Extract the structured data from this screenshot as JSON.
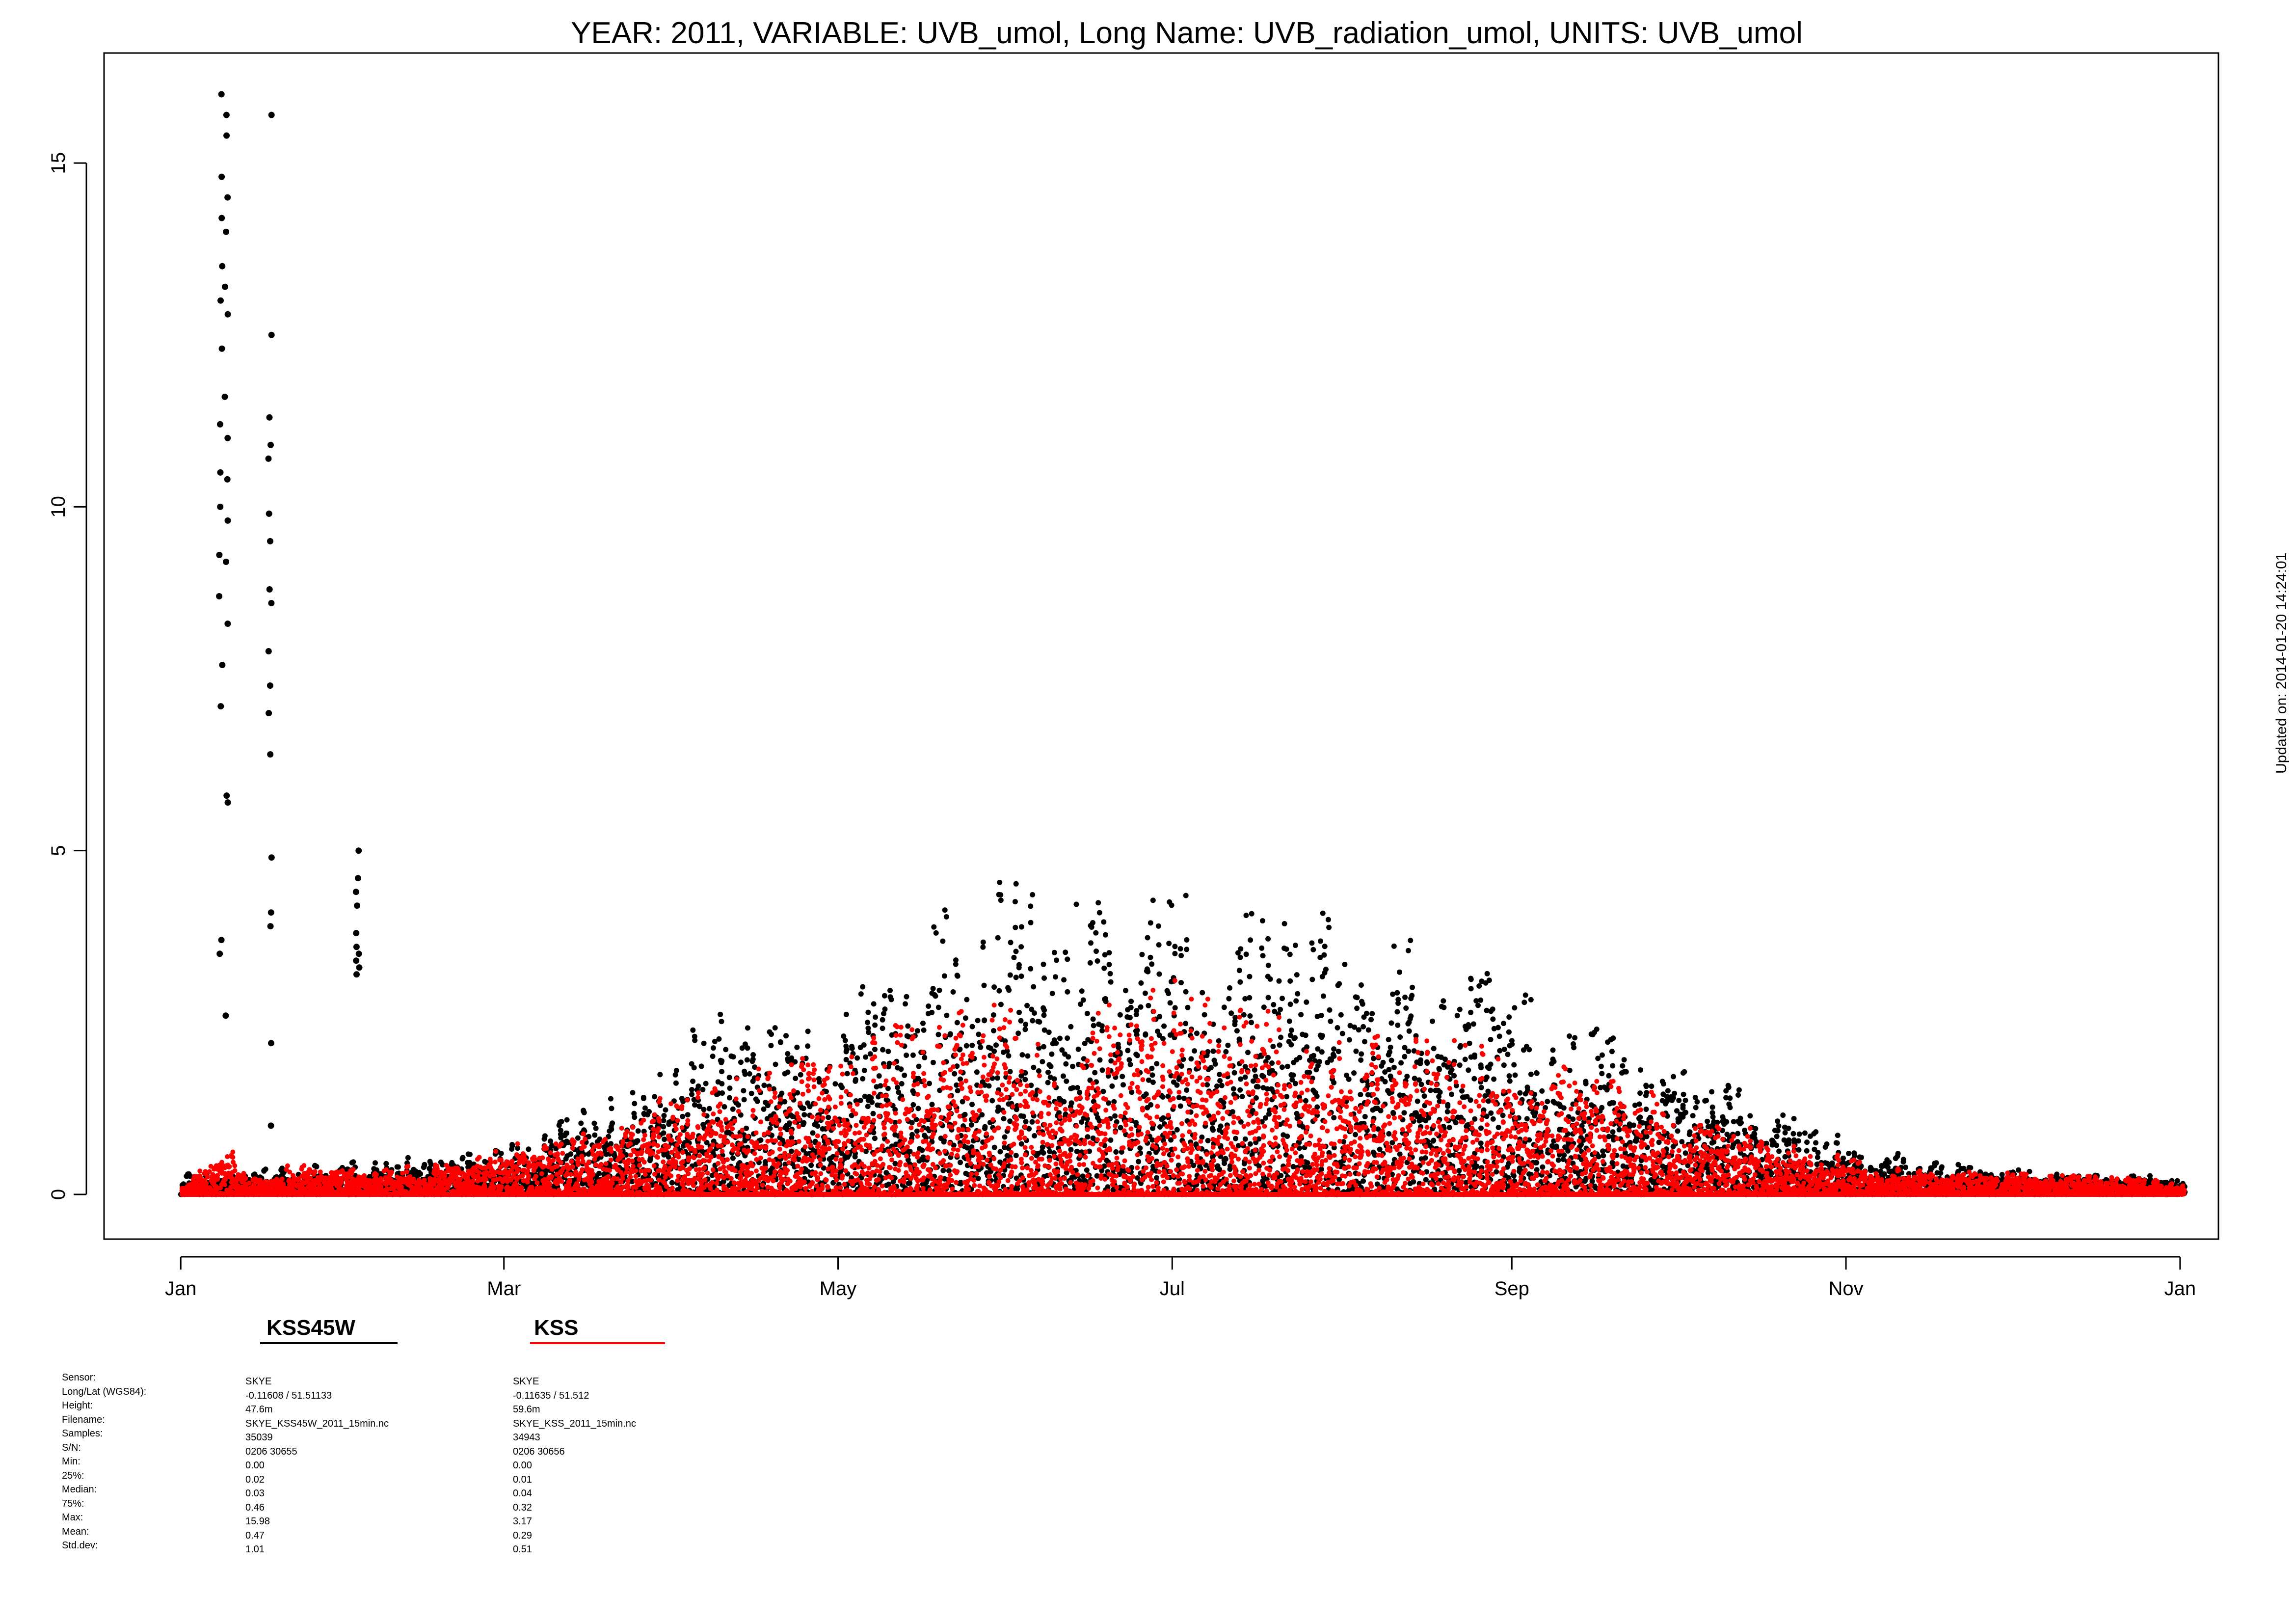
{
  "chart_data": {
    "type": "scatter",
    "title": "YEAR: 2011, VARIABLE: UVB_umol, Long Name: UVB_radiation_umol, UNITS: UVB_umol",
    "xlabel": "",
    "ylabel": "",
    "x_ticks": [
      "Jan",
      "Mar",
      "May",
      "Jul",
      "Sep",
      "Nov",
      "Jan"
    ],
    "x_tick_days": [
      0,
      59,
      120,
      181,
      243,
      304,
      365
    ],
    "xlim_days": [
      -14,
      372
    ],
    "y_ticks": [
      "0",
      "5",
      "10",
      "15"
    ],
    "y_tick_values": [
      0,
      5,
      10,
      15
    ],
    "ylim": [
      -0.65,
      16.6
    ],
    "grid": false,
    "legend_position": "bottom-left",
    "series": [
      {
        "name": "KSS45W",
        "color": "#000000",
        "envelope": [
          [
            0,
            0.3
          ],
          [
            10,
            0.35
          ],
          [
            20,
            0.4
          ],
          [
            35,
            0.5
          ],
          [
            50,
            0.7
          ],
          [
            59,
            0.8
          ],
          [
            66,
            1.0
          ],
          [
            75,
            1.3
          ],
          [
            85,
            1.7
          ],
          [
            95,
            2.6
          ],
          [
            110,
            2.7
          ],
          [
            120,
            3.0
          ],
          [
            130,
            3.2
          ],
          [
            140,
            4.3
          ],
          [
            150,
            4.7
          ],
          [
            160,
            4.4
          ],
          [
            170,
            4.2
          ],
          [
            181,
            4.7
          ],
          [
            190,
            4.1
          ],
          [
            200,
            4.3
          ],
          [
            210,
            4.1
          ],
          [
            220,
            3.9
          ],
          [
            230,
            3.4
          ],
          [
            243,
            3.1
          ],
          [
            255,
            2.5
          ],
          [
            265,
            2.2
          ],
          [
            275,
            1.9
          ],
          [
            285,
            1.5
          ],
          [
            295,
            1.1
          ],
          [
            304,
            0.8
          ],
          [
            315,
            0.55
          ],
          [
            330,
            0.4
          ],
          [
            345,
            0.32
          ],
          [
            365,
            0.25
          ]
        ],
        "outliers": [
          {
            "day": 7,
            "values": [
              16.0,
              14.8,
              14.2,
              13.5,
              13.0,
              12.3,
              11.2,
              10.5,
              10.0,
              9.3,
              8.7,
              7.7,
              7.1,
              3.7,
              3.5
            ]
          },
          {
            "day": 8,
            "values": [
              15.7,
              15.4,
              14.5,
              14.0,
              13.2,
              12.8,
              11.6,
              11.0,
              10.4,
              9.8,
              9.2,
              8.3,
              5.8,
              5.7,
              2.6
            ]
          },
          {
            "day": 16,
            "values": [
              15.7,
              12.5,
              11.3,
              10.9,
              10.7,
              9.9,
              9.5,
              8.8,
              8.6,
              7.9,
              7.4,
              7.0,
              6.4,
              4.9,
              4.1,
              3.9,
              2.2,
              1.0
            ]
          },
          {
            "day": 32,
            "values": [
              5.0,
              4.6,
              4.4,
              4.2,
              3.8,
              3.6,
              3.5,
              3.4,
              3.3,
              3.2
            ]
          }
        ]
      },
      {
        "name": "KSS",
        "color": "#ff0000",
        "envelope": [
          [
            0,
            0.1
          ],
          [
            8,
            0.8
          ],
          [
            12,
            0.3
          ],
          [
            20,
            0.5
          ],
          [
            35,
            0.35
          ],
          [
            50,
            0.5
          ],
          [
            59,
            0.7
          ],
          [
            70,
            0.9
          ],
          [
            85,
            1.3
          ],
          [
            95,
            1.8
          ],
          [
            110,
            1.9
          ],
          [
            120,
            2.3
          ],
          [
            130,
            2.6
          ],
          [
            145,
            2.9
          ],
          [
            160,
            2.5
          ],
          [
            181,
            3.2
          ],
          [
            195,
            2.7
          ],
          [
            210,
            2.6
          ],
          [
            225,
            2.4
          ],
          [
            243,
            2.1
          ],
          [
            255,
            1.8
          ],
          [
            265,
            1.6
          ],
          [
            280,
            1.1
          ],
          [
            295,
            0.8
          ],
          [
            304,
            0.55
          ],
          [
            315,
            0.35
          ],
          [
            340,
            0.3
          ],
          [
            365,
            0.2
          ]
        ]
      }
    ]
  },
  "legend": {
    "items": [
      {
        "name": "KSS45W",
        "color": "#000000"
      },
      {
        "name": "KSS",
        "color": "#ff0000"
      }
    ]
  },
  "updated_note": "Updated on: 2014-01-20 14:24:01",
  "metadata": {
    "labels": [
      "Sensor:",
      "Long/Lat (WGS84):",
      "Height:",
      "Filename:",
      "Samples:",
      "S/N:",
      "Min:",
      "25%:",
      "Median:",
      "75%:",
      "Max:",
      "Mean:",
      "Std.dev:"
    ],
    "kss45w": [
      "SKYE",
      "-0.11608 / 51.51133",
      "47.6m",
      "SKYE_KSS45W_2011_15min.nc",
      "35039",
      "0206 30655",
      "0.00",
      "0.02",
      "0.03",
      "0.46",
      "15.98",
      "0.47",
      "1.01"
    ],
    "kss": [
      "SKYE",
      "-0.11635 / 51.512",
      "59.6m",
      "SKYE_KSS_2011_15min.nc",
      "34943",
      "0206 30656",
      "0.00",
      "0.01",
      "0.04",
      "0.32",
      "3.17",
      "0.29",
      "0.51"
    ]
  }
}
